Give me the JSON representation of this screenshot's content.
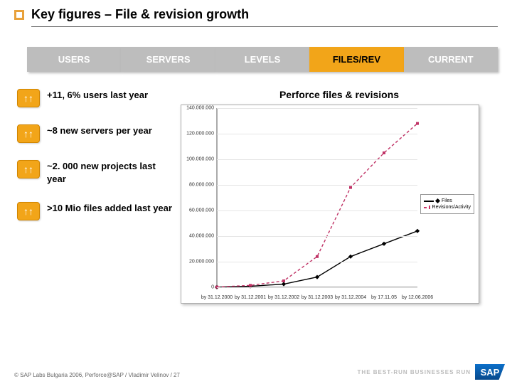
{
  "title": "Key figures – File & revision growth",
  "tabs": [
    {
      "label": "USERS",
      "active": false
    },
    {
      "label": "SERVERS",
      "active": false
    },
    {
      "label": "LEVELS",
      "active": false
    },
    {
      "label": "FILES/REV",
      "active": true
    },
    {
      "label": "CURRENT",
      "active": false
    }
  ],
  "bullets": [
    "+11, 6% users last year",
    "~8 new servers per year",
    "~2. 000 new projects last year",
    ">10 Mio files added last year"
  ],
  "chart": {
    "title": "Perforce files & revisions",
    "type": "line",
    "ylim": [
      0,
      140000000
    ],
    "ytick_step": 20000000,
    "yticks_labels": [
      "0",
      "20.000.000",
      "40.000.000",
      "60.000.000",
      "80.000.000",
      "100.000.000",
      "120.000.000",
      "140.000.000"
    ],
    "categories": [
      "by 31.12.2000",
      "by 31.12.2001",
      "by 31.12.2002",
      "by 31.12.2003",
      "by 31.12.2004",
      "by 17.11.05",
      "by 12.06.2006"
    ],
    "series": [
      {
        "name": "Files",
        "values": [
          100000,
          800000,
          2500000,
          8000000,
          24000000,
          34000000,
          44000000
        ],
        "color": "#000000",
        "style": "solid",
        "marker": "diamond"
      },
      {
        "name": "Revisions/Activity",
        "values": [
          200000,
          1500000,
          5000000,
          24000000,
          78000000,
          105000000,
          128000000
        ],
        "color": "#c03366",
        "style": "dash",
        "marker": "square"
      }
    ],
    "title_fontsize": 14,
    "axis_fontsize": 7,
    "background_color": "#ffffff",
    "grid_color": "#e5e5e5",
    "line_width": 1.4
  },
  "footer": "© SAP Labs Bulgaria 2006, Perforce@SAP / Vladimir Velinov / 27",
  "tagline": "THE BEST-RUN BUSINESSES RUN",
  "sap": "SAP",
  "colors": {
    "accent": "#f2a519",
    "tab_grey": "#bdbdbd",
    "tab_active": "#f2a519"
  }
}
